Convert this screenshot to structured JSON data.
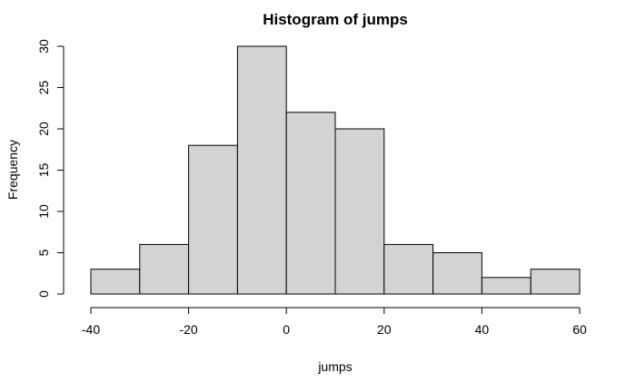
{
  "chart_data": {
    "type": "bar",
    "title": "Histogram of jumps",
    "xlabel": "jumps",
    "ylabel": "Frequency",
    "bins": [
      {
        "start": -40,
        "end": -30,
        "count": 3
      },
      {
        "start": -30,
        "end": -20,
        "count": 6
      },
      {
        "start": -20,
        "end": -10,
        "count": 18
      },
      {
        "start": -10,
        "end": 0,
        "count": 30
      },
      {
        "start": 0,
        "end": 10,
        "count": 22
      },
      {
        "start": 10,
        "end": 20,
        "count": 20
      },
      {
        "start": 20,
        "end": 30,
        "count": 6
      },
      {
        "start": 30,
        "end": 40,
        "count": 5
      },
      {
        "start": 40,
        "end": 50,
        "count": 2
      },
      {
        "start": 50,
        "end": 60,
        "count": 3
      }
    ],
    "x_ticks": [
      "-40",
      "-20",
      "0",
      "20",
      "40",
      "60"
    ],
    "y_ticks": [
      "0",
      "5",
      "10",
      "15",
      "20",
      "25",
      "30"
    ],
    "xlim": [
      -40,
      60
    ],
    "ylim": [
      0,
      30
    ],
    "grid": false,
    "bar_color": "#d3d3d3"
  }
}
